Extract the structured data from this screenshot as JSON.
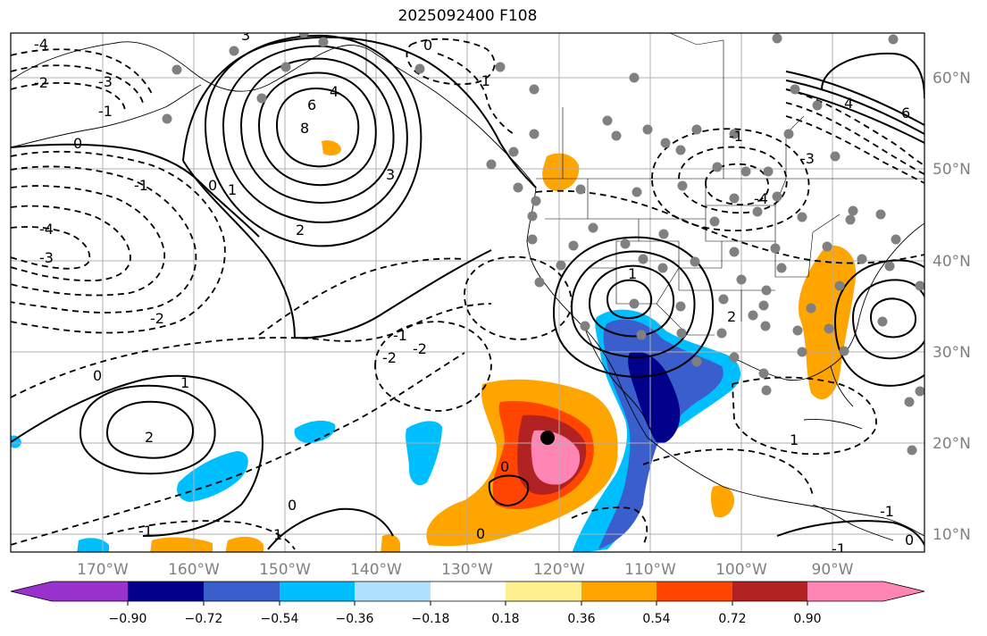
{
  "title": "2025092400 F108",
  "lat_ticks": [
    "60°N",
    "50°N",
    "40°N",
    "30°N",
    "20°N",
    "10°N"
  ],
  "lon_ticks": [
    "170°W",
    "160°W",
    "150°W",
    "140°W",
    "130°W",
    "120°W",
    "110°W",
    "100°W",
    "90°W"
  ],
  "colorbar": {
    "labels": [
      "−0.90",
      "−0.72",
      "−0.54",
      "−0.36",
      "−0.18",
      "0.18",
      "0.36",
      "0.54",
      "0.72",
      "0.90"
    ],
    "colors": [
      "#9932cc",
      "#00008b",
      "#3a5fcd",
      "#00bfff",
      "#b0e2ff",
      "#ffffff",
      "#fff08f",
      "#ffa500",
      "#ff4500",
      "#b22222",
      "#ff85b4"
    ]
  },
  "contour_labels": [
    "-4",
    "-3",
    "-2",
    "-1",
    "0",
    "-4",
    "-3",
    "-2",
    "-1",
    "0",
    "4",
    "6",
    "8",
    "3",
    "2",
    "1",
    "0",
    "1",
    "2",
    "3",
    "-1",
    "-2",
    "-1",
    "1",
    "-2",
    "-4",
    "-3",
    "-1",
    "4",
    "6",
    "-1",
    "0",
    "1",
    "2",
    "-1",
    "0",
    "0",
    "-1",
    "0",
    "1",
    "0"
  ],
  "map_colors": {
    "land_line": "#000000",
    "grid": "#b0b0b0",
    "station": "#808080",
    "storm_center": "#000000"
  }
}
